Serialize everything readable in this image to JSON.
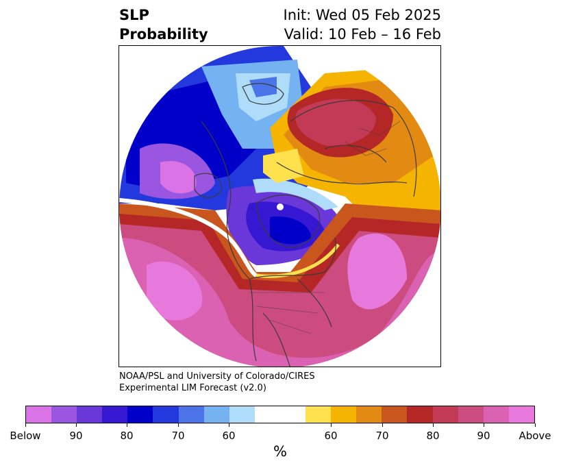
{
  "header": {
    "title_line1": "SLP",
    "title_line2": "Probability",
    "init_text": "Init: Wed 05 Feb 2025",
    "valid_text": "Valid: 10 Feb – 16 Feb"
  },
  "credit": {
    "line1": "NOAA/PSL and University of Colorado/CIRES",
    "line2": "Experimental LIM Forecast (v2.0)"
  },
  "colorbar": {
    "colors": [
      "#d973e6",
      "#9a56e0",
      "#6a37d8",
      "#3618d3",
      "#0000c8",
      "#2339dd",
      "#4a74e8",
      "#74b2f2",
      "#afdcf9",
      "#ffffff",
      "#ffffff",
      "#ffe04d",
      "#f4b400",
      "#e38a12",
      "#c9561c",
      "#b52727",
      "#c23a55",
      "#cc4c7f",
      "#db62b2",
      "#e879dc"
    ],
    "labels": [
      "Below",
      "90",
      "80",
      "70",
      "60",
      "60",
      "70",
      "80",
      "90",
      "Above"
    ],
    "unit": "%"
  },
  "map": {
    "projection": "north-polar-stereographic",
    "legend": "SLP probability colored by category: blue shades below normal, orange-red-pink shades above normal",
    "colors": {
      "below_strong": "#d973e6",
      "below_mid": "#3618d3",
      "below_weak": "#afdcf9",
      "above_weak": "#ffe04d",
      "above_mid": "#c9561c",
      "above_strong": "#e879dc"
    }
  }
}
